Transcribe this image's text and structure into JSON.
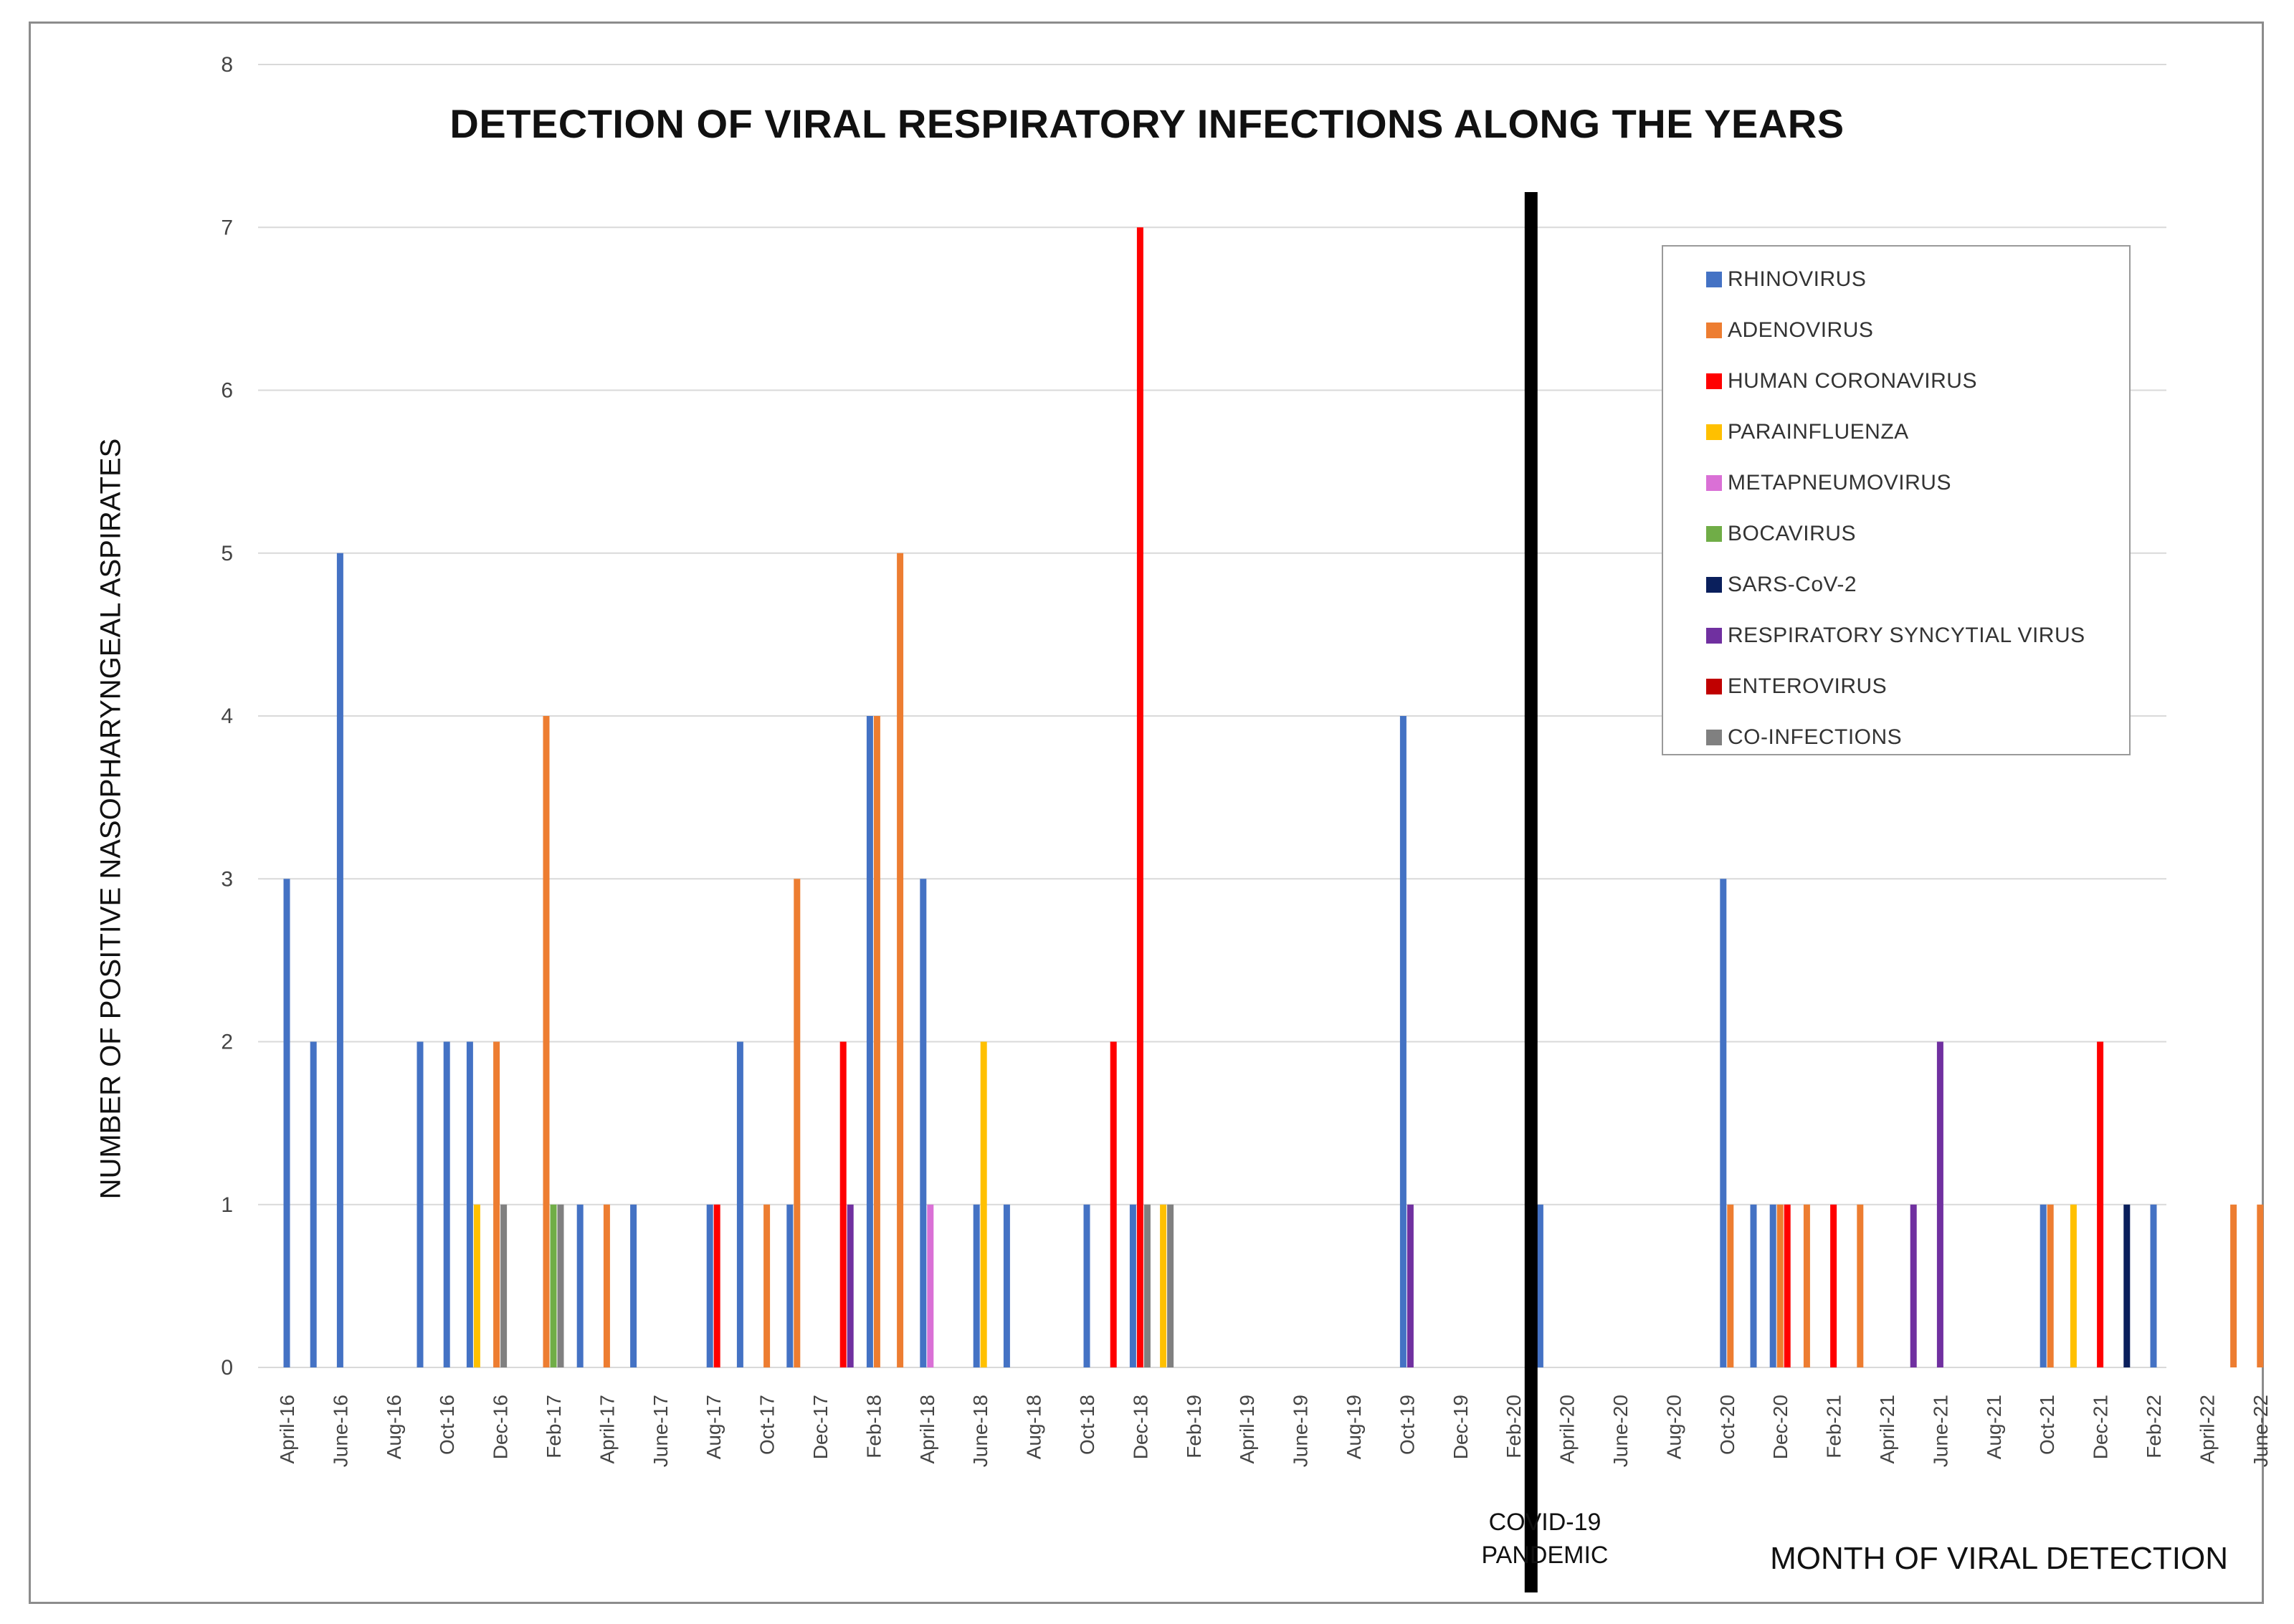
{
  "chart_data": {
    "type": "bar",
    "title": "DETECTION OF VIRAL RESPIRATORY INFECTIONS ALONG THE YEARS",
    "ylabel": "NUMBER OF POSITIVE  NASOPHARYNGEAL  ASPIRATES",
    "xlabel": "MONTH OF VIRAL DETECTION",
    "ylim": [
      0,
      8
    ],
    "yticks": [
      0,
      1,
      2,
      3,
      4,
      5,
      6,
      7,
      8
    ],
    "grid": true,
    "legend_position": "top-right",
    "months": [
      "April-16",
      "May-16",
      "June-16",
      "July-16",
      "Aug-16",
      "Sept-16",
      "Oct-16",
      "Nov-16",
      "Dec-16",
      "Jan-17",
      "Feb-17",
      "Mar-17",
      "April-17",
      "May-17",
      "June-17",
      "July-17",
      "Aug-17",
      "Sept-17",
      "Oct-17",
      "Nov-17",
      "Dec-17",
      "Jan-18",
      "Feb-18",
      "Mar-18",
      "April-18",
      "May-18",
      "June-18",
      "July-18",
      "Aug-18",
      "Sept-18",
      "Oct-18",
      "Nov-18",
      "Dec-18",
      "Jan-19",
      "Feb-19",
      "Mar-19",
      "April-19",
      "May-19",
      "June-19",
      "July-19",
      "Aug-19",
      "Sept-19",
      "Oct-19",
      "Nov-19",
      "Dec-19",
      "Jan-20",
      "Feb-20",
      "Mar-20",
      "April-20",
      "May-20",
      "June-20",
      "July-20",
      "Aug-20",
      "Sept-20",
      "Oct-20",
      "Nov-20",
      "Dec-20",
      "Jan-21",
      "Feb-21",
      "Mar-21",
      "April-21",
      "May-21",
      "June-21",
      "July-21",
      "Aug-21",
      "Sept-21",
      "Oct-21",
      "Nov-21",
      "Dec-21",
      "Jan-22",
      "Feb-22",
      "Mar-22",
      "April-22",
      "May-22",
      "June-22"
    ],
    "tick_labels": [
      "April-16",
      "June-16",
      "Aug-16",
      "Oct-16",
      "Dec-16",
      "Feb-17",
      "April-17",
      "June-17",
      "Aug-17",
      "Oct-17",
      "Dec-17",
      "Feb-18",
      "April-18",
      "June-18",
      "Aug-18",
      "Oct-18",
      "Dec-18",
      "Feb-19",
      "April-19",
      "June-19",
      "Aug-19",
      "Oct-19",
      "Dec-19",
      "Feb-20",
      "April-20",
      "June-20",
      "Aug-20",
      "Oct-20",
      "Dec-20",
      "Feb-21",
      "April-21",
      "June-21",
      "Aug-21",
      "Oct-21",
      "Dec-21",
      "Feb-22",
      "April-22",
      "June-22"
    ],
    "series": [
      {
        "name": "RHINOVIRUS",
        "color": "#4472C4",
        "values": [
          3,
          2,
          5,
          0,
          0,
          2,
          2,
          2,
          0,
          0,
          0,
          1,
          0,
          1,
          0,
          0,
          1,
          2,
          0,
          1,
          0,
          0,
          4,
          0,
          3,
          0,
          1,
          1,
          0,
          0,
          1,
          0,
          1,
          0,
          0,
          0,
          0,
          0,
          0,
          0,
          0,
          0,
          4,
          0,
          0,
          0,
          0,
          1,
          0,
          0,
          0,
          0,
          0,
          0,
          3,
          1,
          1,
          0,
          0,
          0,
          0,
          0,
          0,
          0,
          0,
          0,
          1,
          0,
          0,
          0,
          1,
          0,
          0,
          0,
          0
        ]
      },
      {
        "name": "ADENOVIRUS",
        "color": "#ED7D31",
        "values": [
          0,
          0,
          0,
          0,
          0,
          0,
          0,
          0,
          2,
          0,
          4,
          0,
          1,
          0,
          0,
          0,
          0,
          0,
          1,
          3,
          0,
          0,
          4,
          5,
          0,
          0,
          0,
          0,
          0,
          0,
          0,
          0,
          0,
          0,
          0,
          0,
          0,
          0,
          0,
          0,
          0,
          0,
          0,
          0,
          0,
          0,
          0,
          0,
          0,
          0,
          0,
          0,
          0,
          0,
          1,
          0,
          1,
          1,
          0,
          1,
          0,
          0,
          0,
          0,
          0,
          0,
          1,
          0,
          0,
          0,
          0,
          0,
          0,
          1,
          1
        ]
      },
      {
        "name": "HUMAN CORONAVIRUS",
        "color": "#FF0000",
        "values": [
          0,
          0,
          0,
          0,
          0,
          0,
          0,
          0,
          0,
          0,
          0,
          0,
          0,
          0,
          0,
          0,
          1,
          0,
          0,
          0,
          0,
          2,
          0,
          0,
          0,
          0,
          0,
          0,
          0,
          0,
          0,
          2,
          7,
          0,
          0,
          0,
          0,
          0,
          0,
          0,
          0,
          0,
          0,
          0,
          0,
          0,
          0,
          0,
          0,
          0,
          0,
          0,
          0,
          0,
          0,
          0,
          1,
          0,
          1,
          0,
          0,
          0,
          0,
          0,
          0,
          0,
          0,
          0,
          2,
          0,
          0,
          0,
          0,
          0,
          0
        ]
      },
      {
        "name": "PARAINFLUENZA",
        "color": "#FFC000",
        "values": [
          0,
          0,
          0,
          0,
          0,
          0,
          0,
          1,
          0,
          0,
          0,
          0,
          0,
          0,
          0,
          0,
          0,
          0,
          0,
          0,
          0,
          0,
          0,
          0,
          0,
          0,
          2,
          0,
          0,
          0,
          0,
          0,
          0,
          1,
          0,
          0,
          0,
          0,
          0,
          0,
          0,
          0,
          0,
          0,
          0,
          0,
          0,
          0,
          0,
          0,
          0,
          0,
          0,
          0,
          0,
          0,
          0,
          0,
          0,
          0,
          0,
          0,
          0,
          0,
          0,
          0,
          0,
          1,
          0,
          0,
          0,
          0,
          0,
          0,
          0
        ]
      },
      {
        "name": "METAPNEUMOVIRUS",
        "color": "#DA70D6",
        "values": [
          0,
          0,
          0,
          0,
          0,
          0,
          0,
          0,
          0,
          0,
          0,
          0,
          0,
          0,
          0,
          0,
          0,
          0,
          0,
          0,
          0,
          0,
          0,
          0,
          1,
          0,
          0,
          0,
          0,
          0,
          0,
          0,
          0,
          0,
          0,
          0,
          0,
          0,
          0,
          0,
          0,
          0,
          0,
          0,
          0,
          0,
          0,
          0,
          0,
          0,
          0,
          0,
          0,
          0,
          0,
          0,
          0,
          0,
          0,
          0,
          0,
          0,
          0,
          0,
          0,
          0,
          0,
          0,
          0,
          0,
          0,
          0,
          0,
          0,
          0
        ]
      },
      {
        "name": "BOCAVIRUS",
        "color": "#70AD47",
        "values": [
          0,
          0,
          0,
          0,
          0,
          0,
          0,
          0,
          0,
          0,
          1,
          0,
          0,
          0,
          0,
          0,
          0,
          0,
          0,
          0,
          0,
          0,
          0,
          0,
          0,
          0,
          0,
          0,
          0,
          0,
          0,
          0,
          0,
          0,
          0,
          0,
          0,
          0,
          0,
          0,
          0,
          0,
          0,
          0,
          0,
          0,
          0,
          0,
          0,
          0,
          0,
          0,
          0,
          0,
          0,
          0,
          0,
          0,
          0,
          0,
          0,
          0,
          0,
          0,
          0,
          0,
          0,
          0,
          0,
          0,
          0,
          0,
          0,
          0,
          0
        ]
      },
      {
        "name": "SARS-CoV-2",
        "color": "#0A1F5C",
        "values": [
          0,
          0,
          0,
          0,
          0,
          0,
          0,
          0,
          0,
          0,
          0,
          0,
          0,
          0,
          0,
          0,
          0,
          0,
          0,
          0,
          0,
          0,
          0,
          0,
          0,
          0,
          0,
          0,
          0,
          0,
          0,
          0,
          0,
          0,
          0,
          0,
          0,
          0,
          0,
          0,
          0,
          0,
          0,
          0,
          0,
          0,
          0,
          0,
          0,
          0,
          0,
          0,
          0,
          0,
          0,
          0,
          0,
          0,
          0,
          0,
          0,
          0,
          0,
          0,
          0,
          0,
          0,
          0,
          0,
          1,
          0,
          0,
          0,
          0,
          0
        ]
      },
      {
        "name": "RESPIRATORY SYNCYTIAL VIRUS",
        "color": "#7030A0",
        "values": [
          0,
          0,
          0,
          0,
          0,
          0,
          0,
          0,
          0,
          0,
          0,
          0,
          0,
          0,
          0,
          0,
          0,
          0,
          0,
          0,
          0,
          1,
          0,
          0,
          0,
          0,
          0,
          0,
          0,
          0,
          0,
          0,
          0,
          0,
          0,
          0,
          0,
          0,
          0,
          0,
          0,
          0,
          1,
          0,
          0,
          0,
          0,
          0,
          0,
          0,
          0,
          0,
          0,
          0,
          0,
          0,
          0,
          0,
          0,
          0,
          0,
          1,
          2,
          0,
          0,
          0,
          0,
          0,
          0,
          0,
          0,
          0,
          0,
          0,
          0
        ]
      },
      {
        "name": "ENTEROVIRUS",
        "color": "#C00000",
        "values": [
          0,
          0,
          0,
          0,
          0,
          0,
          0,
          0,
          0,
          0,
          0,
          0,
          0,
          0,
          0,
          0,
          0,
          0,
          0,
          0,
          0,
          0,
          0,
          0,
          0,
          0,
          0,
          0,
          0,
          0,
          0,
          0,
          0,
          0,
          0,
          0,
          0,
          0,
          0,
          0,
          0,
          0,
          0,
          0,
          0,
          0,
          0,
          0,
          0,
          0,
          0,
          0,
          0,
          0,
          0,
          0,
          0,
          0,
          0,
          0,
          0,
          0,
          0,
          0,
          0,
          0,
          0,
          0,
          0,
          0,
          0,
          0,
          0,
          0,
          0
        ]
      },
      {
        "name": "CO-INFECTIONS",
        "color": "#808080",
        "values": [
          0,
          0,
          0,
          0,
          0,
          0,
          0,
          0,
          1,
          0,
          1,
          0,
          0,
          0,
          0,
          0,
          0,
          0,
          0,
          0,
          0,
          0,
          0,
          0,
          0,
          0,
          0,
          0,
          0,
          0,
          0,
          0,
          1,
          1,
          0,
          0,
          0,
          0,
          0,
          0,
          0,
          0,
          0,
          0,
          0,
          0,
          0,
          0,
          0,
          0,
          0,
          0,
          0,
          0,
          0,
          0,
          0,
          0,
          0,
          0,
          0,
          0,
          0,
          0,
          0,
          0,
          0,
          0,
          0,
          0,
          0,
          0,
          0,
          0,
          0
        ]
      }
    ],
    "annotations": [
      {
        "text": "COVID-19",
        "month": "Mar-20"
      },
      {
        "text": "PANDEMIC",
        "month": "Mar-20"
      }
    ]
  }
}
